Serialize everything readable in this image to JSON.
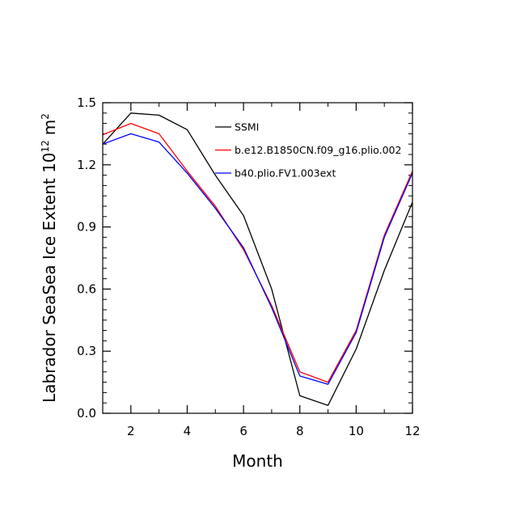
{
  "chart_data": {
    "type": "line",
    "title": "",
    "xlabel": "Month",
    "ylabel": "Labrador SeaSea Ice Extent 10",
    "ylabel_exponent": "12",
    "ylabel_unit": "m",
    "ylabel_unit_exponent": "2",
    "x": [
      1,
      2,
      3,
      4,
      5,
      6,
      7,
      8,
      9,
      10,
      11,
      12
    ],
    "xlim": [
      1,
      12
    ],
    "ylim": [
      0,
      1.5
    ],
    "x_ticks": [
      2,
      4,
      6,
      8,
      10,
      12
    ],
    "x_tick_labels": [
      "2",
      "4",
      "6",
      "8",
      "10",
      "12"
    ],
    "y_ticks": [
      0,
      0.3,
      0.6,
      0.9,
      1.2,
      1.5
    ],
    "y_tick_labels": [
      "0.0",
      "0.3",
      "0.6",
      "0.9",
      "1.2",
      "1.5"
    ],
    "legend_position": "top-right (inside plot)",
    "series": [
      {
        "name": "SSMI",
        "color": "#000000",
        "values": [
          1.3,
          1.45,
          1.44,
          1.37,
          1.15,
          0.955,
          0.6,
          0.085,
          0.038,
          0.31,
          0.69,
          1.02
        ]
      },
      {
        "name": "b.e12.B1850CN.f09_g16.plio.002",
        "color": "#ff0000",
        "values": [
          1.345,
          1.4,
          1.35,
          1.17,
          1.0,
          0.79,
          0.52,
          0.2,
          0.15,
          0.4,
          0.86,
          1.17
        ]
      },
      {
        "name": "b40.plio.FV1.003ext",
        "color": "#0000ff",
        "values": [
          1.3,
          1.35,
          1.31,
          1.16,
          0.99,
          0.8,
          0.51,
          0.18,
          0.14,
          0.39,
          0.85,
          1.16
        ]
      }
    ]
  }
}
